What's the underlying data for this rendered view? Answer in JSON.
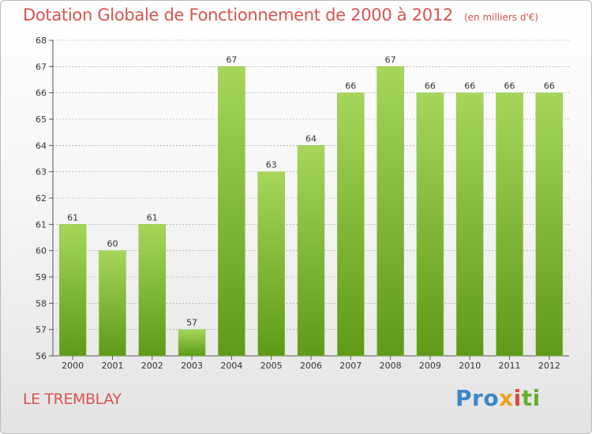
{
  "header": {
    "title": "Dotation Globale de Fonctionnement de 2000 à 2012",
    "units": "(en milliers d'€)"
  },
  "footer": {
    "commune": "LE TREMBLAY",
    "logo_parts": [
      "Pro",
      "x",
      "i",
      "ti"
    ]
  },
  "colors": {
    "bar_top": "#a6d65a",
    "bar_bottom": "#5e9a18",
    "title": "#d9534f",
    "grid": "#999999"
  },
  "chart_data": {
    "type": "bar",
    "title": "Dotation Globale de Fonctionnement de 2000 à 2012",
    "subtitle": "(en milliers d'€)",
    "xlabel": "",
    "ylabel": "",
    "categories": [
      "2000",
      "2001",
      "2002",
      "2003",
      "2004",
      "2005",
      "2006",
      "2007",
      "2008",
      "2009",
      "2010",
      "2011",
      "2012"
    ],
    "values": [
      61,
      60,
      61,
      57,
      67,
      63,
      64,
      66,
      67,
      66,
      66,
      66,
      66
    ],
    "value_labels": [
      "61",
      "60",
      "61",
      "57",
      "67",
      "63",
      "64",
      "66",
      "67",
      "66",
      "66",
      "66",
      "66"
    ],
    "ylim": [
      56,
      68
    ],
    "yticks": [
      56,
      57,
      58,
      59,
      60,
      61,
      62,
      63,
      64,
      65,
      66,
      67,
      68
    ],
    "grid": true,
    "legend": "none"
  }
}
